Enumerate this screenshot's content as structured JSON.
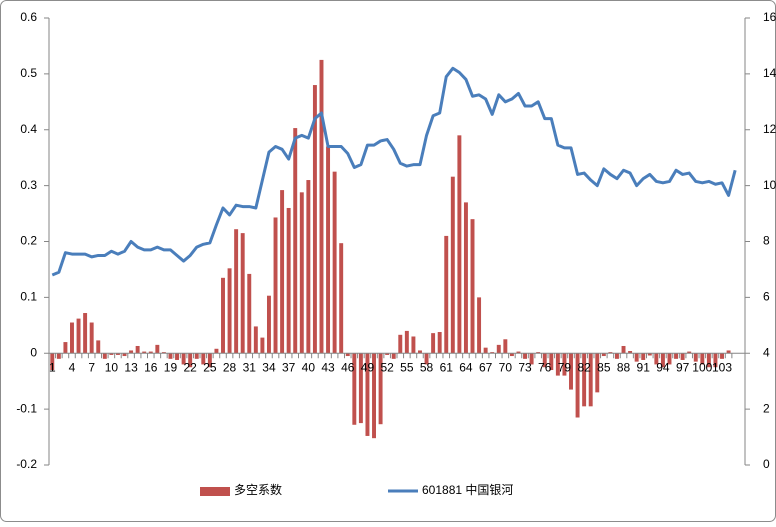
{
  "chart_data": {
    "type": "bar-line",
    "categories": [
      "1",
      null,
      null,
      "4",
      null,
      null,
      "7",
      null,
      null,
      "10",
      null,
      null,
      "13",
      null,
      null,
      "16",
      null,
      null,
      "19",
      null,
      null,
      "22",
      null,
      null,
      "25",
      null,
      null,
      "28",
      null,
      null,
      "31",
      null,
      null,
      "34",
      null,
      null,
      "37",
      null,
      null,
      "40",
      null,
      null,
      "43",
      null,
      null,
      "46",
      null,
      null,
      "49",
      null,
      null,
      "52",
      null,
      null,
      "55",
      null,
      null,
      "58",
      null,
      null,
      "61",
      null,
      null,
      "64",
      null,
      null,
      "67",
      null,
      null,
      "70",
      null,
      null,
      "73",
      null,
      null,
      "76",
      null,
      null,
      "79",
      null,
      null,
      "82",
      null,
      null,
      "85",
      null,
      null,
      "88",
      null,
      null,
      "91",
      null,
      null,
      "94",
      null,
      null,
      "97",
      null,
      null,
      "100",
      null,
      null,
      "103",
      null,
      null
    ],
    "series": [
      {
        "name": "多空系数",
        "type": "bar",
        "color": "#c0504d",
        "values": [
          -0.03,
          -0.01,
          0.02,
          0.055,
          0.062,
          0.072,
          0.055,
          0.023,
          -0.01,
          -0.003,
          -0.003,
          -0.005,
          0.005,
          0.013,
          0.003,
          0.003,
          0.015,
          0.002,
          -0.01,
          -0.012,
          -0.02,
          -0.025,
          -0.01,
          -0.02,
          -0.025,
          0.008,
          0.135,
          0.152,
          0.222,
          0.215,
          0.142,
          0.048,
          0.028,
          0.103,
          0.243,
          0.292,
          0.26,
          0.403,
          0.288,
          0.31,
          0.48,
          0.525,
          0.37,
          0.325,
          0.197,
          -0.005,
          -0.128,
          -0.125,
          -0.148,
          -0.152,
          -0.127,
          -0.003,
          -0.01,
          0.033,
          0.04,
          0.03,
          0.005,
          -0.02,
          0.036,
          0.038,
          0.21,
          0.316,
          0.39,
          0.27,
          0.24,
          0.1,
          0.01,
          0.002,
          0.015,
          0.025,
          -0.005,
          0.003,
          -0.01,
          -0.02,
          0.002,
          -0.025,
          -0.03,
          -0.04,
          -0.04,
          -0.065,
          -0.115,
          -0.095,
          -0.095,
          -0.07,
          -0.005,
          0.002,
          -0.01,
          0.013,
          0.004,
          -0.015,
          -0.012,
          -0.004,
          -0.02,
          -0.025,
          -0.02,
          -0.01,
          -0.012,
          0.003,
          -0.015,
          -0.02,
          -0.025,
          -0.025,
          -0.01,
          0.005,
          0
        ]
      },
      {
        "name": "601881 中国银河",
        "type": "line",
        "axis": "y2",
        "color": "#4a7ebb",
        "values": [
          6.8,
          6.9,
          7.6,
          7.55,
          7.55,
          7.55,
          7.45,
          7.5,
          7.5,
          7.65,
          7.55,
          7.65,
          8.0,
          7.8,
          7.7,
          7.7,
          7.8,
          7.7,
          7.7,
          7.5,
          7.3,
          7.5,
          7.8,
          7.9,
          7.95,
          8.6,
          9.2,
          8.95,
          9.3,
          9.25,
          9.25,
          9.2,
          10.2,
          11.2,
          11.4,
          11.3,
          10.95,
          11.7,
          11.8,
          11.7,
          12.4,
          12.6,
          11.4,
          11.4,
          11.4,
          11.15,
          10.65,
          10.75,
          11.45,
          11.45,
          11.6,
          11.65,
          11.3,
          10.8,
          10.7,
          10.75,
          10.75,
          11.8,
          12.5,
          12.6,
          13.9,
          14.2,
          14.05,
          13.8,
          13.2,
          13.25,
          13.1,
          12.55,
          13.25,
          13.0,
          13.1,
          13.3,
          12.85,
          12.85,
          13.0,
          12.4,
          12.4,
          11.45,
          11.35,
          11.35,
          10.4,
          10.45,
          10.2,
          10.0,
          10.6,
          10.4,
          10.25,
          10.55,
          10.45,
          10.0,
          10.25,
          10.4,
          10.15,
          10.1,
          10.15,
          10.55,
          10.4,
          10.45,
          10.15,
          10.1,
          10.15,
          10.05,
          10.1,
          9.65,
          10.55
        ]
      }
    ],
    "ylim": [
      -0.2,
      0.6
    ],
    "yticks": [
      -0.2,
      -0.1,
      0,
      0.1,
      0.2,
      0.3,
      0.4,
      0.5,
      0.6
    ],
    "y2lim": [
      0,
      16
    ],
    "y2ticks": [
      0,
      2,
      4,
      6,
      8,
      10,
      12,
      14,
      16
    ],
    "legend": "bottom"
  }
}
